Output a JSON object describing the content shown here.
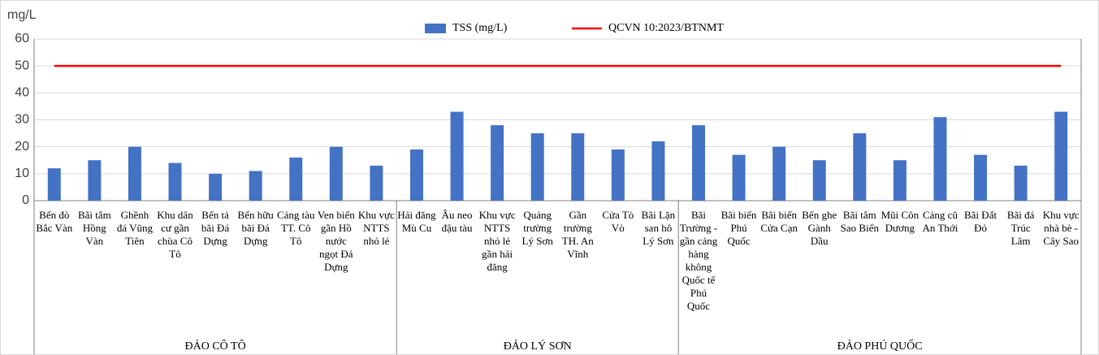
{
  "chart_data": {
    "type": "bar",
    "y_label": "mg/L",
    "groups": [
      {
        "name": "ĐẢO CÔ TÔ",
        "categories": [
          "Bến đò Bắc Vàn",
          "Bãi tắm Hồng Vàn",
          "Ghềnh đá Vũng Tiên",
          "Khu dân cư gần chùa Cô Tô",
          "Bến tả bãi Đá Dựng",
          "Bến hữu bãi Đá Dựng",
          "Cảng tàu TT. Cô Tô",
          "Ven biển gần Hồ nước ngọt Đá Dựng",
          "Khu vực NTTS nhỏ lẻ"
        ]
      },
      {
        "name": "ĐẢO LÝ SƠN",
        "categories": [
          "Hải đăng Mù Cu",
          "Âu neo đậu tàu",
          "Khu vực NTTS nhỏ lẻ gần hải đăng",
          "Quảng trường Lý Sơn",
          "Gần trường TH. An Vĩnh",
          "Cửa Tò Vò",
          "Bãi Lặn san hô Lý Sơn"
        ]
      },
      {
        "name": "ĐẢO PHÚ QUỐC",
        "categories": [
          "Bãi Trường - gần cảng hàng không Quốc tế Phú Quốc",
          "Bãi biển Phú Quốc",
          "Bãi biển Cửa Cạn",
          "Bến ghe Gành Dầu",
          "Bãi tắm Sao Biển",
          "Mũi Côn Dương",
          "Cảng cũ An Thới",
          "Bãi Đất Đỏ",
          "Bãi đá Trúc Lâm",
          "Khu vực nhà bè - Cây Sao"
        ]
      }
    ],
    "series": [
      {
        "name": "TSS (mg/L)",
        "type": "bar",
        "color": "#4472c4",
        "values": [
          12,
          15,
          20,
          14,
          10,
          11,
          16,
          20,
          13,
          19,
          33,
          28,
          25,
          25,
          19,
          22,
          28,
          17,
          20,
          15,
          25,
          15,
          31,
          17,
          13,
          33
        ]
      },
      {
        "name": "QCVN 10:2023/BTNMT",
        "type": "line",
        "color": "#ff0000",
        "values": [
          50,
          50,
          50,
          50,
          50,
          50,
          50,
          50,
          50,
          50,
          50,
          50,
          50,
          50,
          50,
          50,
          50,
          50,
          50,
          50,
          50,
          50,
          50,
          50,
          50,
          50
        ]
      }
    ],
    "ylim": [
      0,
      60
    ],
    "yticks": [
      0,
      10,
      20,
      30,
      40,
      50,
      60
    ],
    "grid": true
  }
}
